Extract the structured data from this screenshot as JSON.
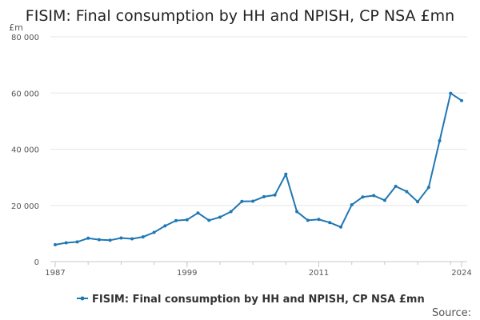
{
  "chart_data": {
    "type": "line",
    "title": "FISIM: Final consumption by HH and NPISH, CP NSA £mn",
    "ylabel": "£m",
    "source_label": "Source:",
    "ylim": [
      0,
      80000
    ],
    "y_ticks": [
      0,
      20000,
      40000,
      60000,
      80000
    ],
    "y_tick_labels": [
      "0",
      "20 000",
      "40 000",
      "60 000",
      "80 000"
    ],
    "xlim": [
      1987,
      2024
    ],
    "x_ticks": [
      1987,
      1999,
      2011,
      2024
    ],
    "x_tick_labels": [
      "1987",
      "1999",
      "2011",
      "2024"
    ],
    "grid": true,
    "legend_position": "bottom",
    "x": [
      1987,
      1988,
      1989,
      1990,
      1991,
      1992,
      1993,
      1994,
      1995,
      1996,
      1997,
      1998,
      1999,
      2000,
      2001,
      2002,
      2003,
      2004,
      2005,
      2006,
      2007,
      2008,
      2009,
      2010,
      2011,
      2012,
      2013,
      2014,
      2015,
      2016,
      2017,
      2018,
      2019,
      2020,
      2021,
      2022,
      2023,
      2024
    ],
    "series": [
      {
        "name": "FISIM: Final consumption by HH and NPISH, CP NSA £mn",
        "color": "#1f77b4",
        "values": [
          6000,
          6700,
          7000,
          8300,
          7800,
          7600,
          8400,
          8100,
          8800,
          10400,
          12700,
          14600,
          14900,
          17300,
          14700,
          15800,
          17800,
          21400,
          21500,
          23100,
          23700,
          31100,
          17800,
          14700,
          15000,
          13900,
          12300,
          20200,
          23000,
          23500,
          21800,
          26800,
          24900,
          21300,
          26400,
          43000,
          59900,
          57300
        ]
      }
    ]
  }
}
